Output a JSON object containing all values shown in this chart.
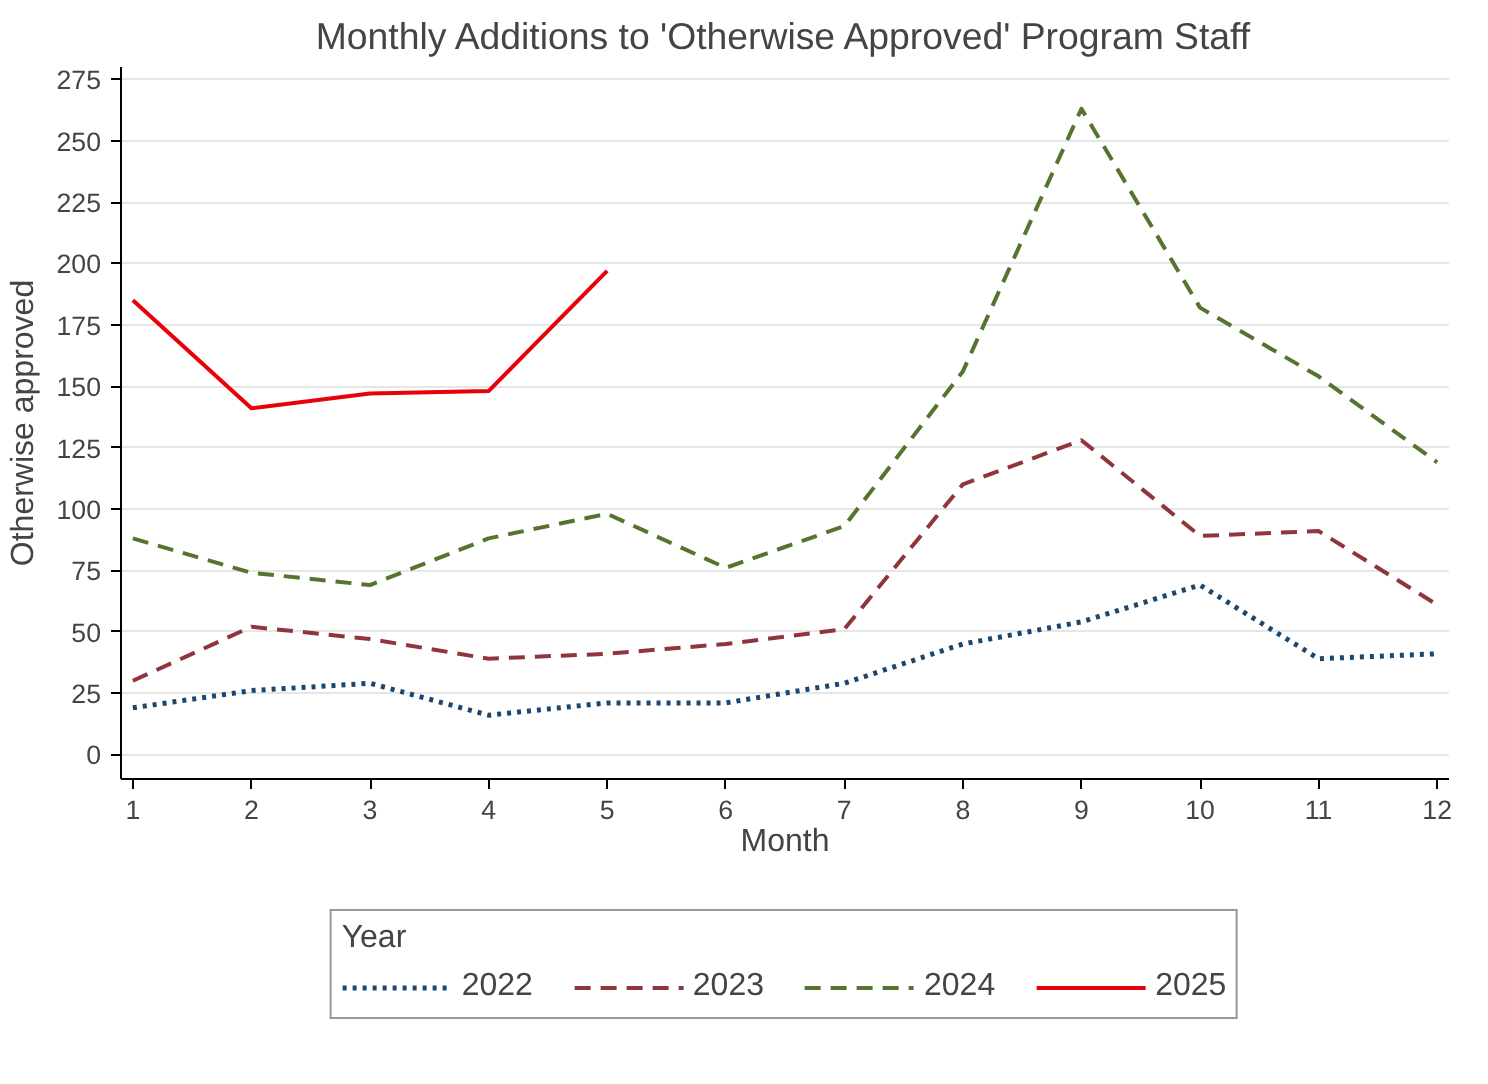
{
  "chart_data": {
    "type": "line",
    "title": "Monthly Additions to 'Otherwise Approved' Program Staff",
    "xlabel": "Month",
    "ylabel": "Otherwise approved",
    "legend_title": "Year",
    "x": [
      1,
      2,
      3,
      4,
      5,
      6,
      7,
      8,
      9,
      10,
      11,
      12
    ],
    "series": [
      {
        "name": "2022",
        "color": "#1a476f",
        "line_style": "dotted",
        "values": [
          19,
          26,
          29,
          16,
          21,
          21,
          29,
          45,
          54,
          69,
          39,
          41
        ]
      },
      {
        "name": "2023",
        "color": "#90353b",
        "line_style": "dashed",
        "values": [
          30,
          52,
          47,
          39,
          41,
          45,
          51,
          110,
          128,
          89,
          91,
          61
        ]
      },
      {
        "name": "2024",
        "color": "#55752f",
        "line_style": "dashed",
        "values": [
          88,
          74,
          69,
          88,
          98,
          76,
          93,
          156,
          263,
          182,
          154,
          119
        ]
      },
      {
        "name": "2025",
        "color": "#e8000b",
        "line_style": "solid",
        "values": [
          185,
          141,
          147,
          148,
          197,
          null,
          null,
          null,
          null,
          null,
          null,
          null
        ]
      }
    ],
    "xlim": [
      0.9,
      12.1
    ],
    "ylim": [
      -10,
      280
    ],
    "xticks": [
      1,
      2,
      3,
      4,
      5,
      6,
      7,
      8,
      9,
      10,
      11,
      12
    ],
    "yticks": [
      0,
      25,
      50,
      75,
      100,
      125,
      150,
      175,
      200,
      225,
      250,
      275
    ],
    "grid": "y",
    "legend": "bottom",
    "marker": "none"
  }
}
